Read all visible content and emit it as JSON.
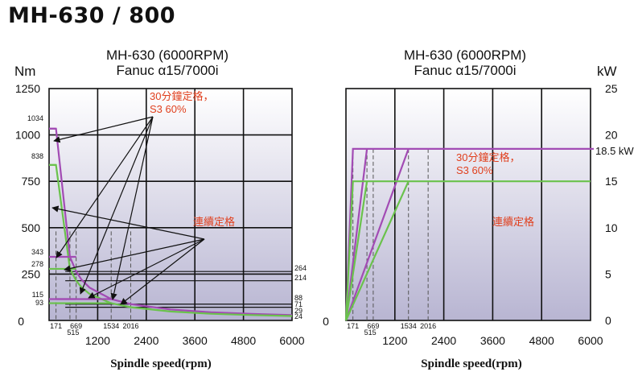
{
  "page_title": "MH-630 / 800",
  "colors": {
    "purple": "#a24bb4",
    "green": "#6ac24c",
    "red_text": "#e0401e",
    "grid": "#111111",
    "bg_top": "#ffffff",
    "bg_bottom": "#b8b5d2"
  },
  "chart_data": [
    {
      "type": "line",
      "title": [
        "MH-630 (6000RPM)",
        "Fanuc α15/7000i"
      ],
      "ylabel": "Nm",
      "xlabel": "Spindle speed(rpm)",
      "xlim": [
        0,
        6000
      ],
      "ylim": [
        0,
        1250
      ],
      "x_ticks": [
        "1200",
        "2400",
        "3600",
        "4800",
        "6000"
      ],
      "y_ticks": [
        "0",
        "250",
        "500",
        "750",
        "1000",
        "1250"
      ],
      "small_x_labels": [
        "171",
        "515",
        "669",
        "1534",
        "2016"
      ],
      "left_value_labels": [
        "1034",
        "838",
        "343",
        "278",
        "115",
        "93"
      ],
      "right_value_labels": [
        "264",
        "214",
        "88",
        "71",
        "29",
        "24"
      ],
      "annotations": [
        {
          "text": "30分鐘定格，",
          "text2": "S3 60%"
        },
        {
          "text": "連續定格"
        }
      ],
      "series": [
        {
          "name": "30分鐘定格，S3 60%",
          "color": "purple",
          "x": [
            0,
            171,
            515,
            669,
            800,
            1000,
            1534,
            2016,
            3000,
            4000,
            5000,
            6000
          ],
          "y": [
            1034,
            1034,
            343,
            264,
            220,
            177,
            115,
            88,
            59,
            44,
            35,
            29
          ]
        },
        {
          "name": "連續定格",
          "color": "green",
          "x": [
            0,
            171,
            515,
            669,
            800,
            1000,
            1534,
            2016,
            3000,
            4000,
            5000,
            6000
          ],
          "y": [
            838,
            838,
            278,
            214,
            179,
            143,
            93,
            71,
            48,
            36,
            29,
            24
          ]
        }
      ]
    },
    {
      "type": "line",
      "title": [
        "MH-630 (6000RPM)",
        "Fanuc α15/7000i"
      ],
      "ylabel": "kW",
      "xlabel": "Spindle speed(rpm)",
      "xlim": [
        0,
        6000
      ],
      "ylim": [
        0,
        25
      ],
      "x_ticks": [
        "0",
        "1200",
        "2400",
        "3600",
        "4800",
        "6000"
      ],
      "y_ticks": [
        "0",
        "5",
        "10",
        "15",
        "20",
        "25"
      ],
      "small_x_labels": [
        "171",
        "515",
        "669",
        "1534",
        "2016"
      ],
      "value_label": "18.5 kW",
      "annotations": [
        {
          "text": "30分鐘定格，",
          "text2": "S3 60%"
        },
        {
          "text": "連續定格"
        }
      ],
      "series": [
        {
          "name": "30分鐘定格，S3 60%",
          "color": "purple",
          "segments": [
            [
              [
                0,
                0
              ],
              [
                171,
                18.5
              ],
              [
                6000,
                18.5
              ]
            ],
            [
              [
                0,
                0
              ],
              [
                515,
                18.5
              ]
            ],
            [
              [
                0,
                0
              ],
              [
                1534,
                18.5
              ]
            ]
          ]
        },
        {
          "name": "連續定格",
          "color": "green",
          "segments": [
            [
              [
                0,
                0
              ],
              [
                171,
                15
              ],
              [
                6000,
                15
              ]
            ],
            [
              [
                0,
                0
              ],
              [
                515,
                15
              ]
            ],
            [
              [
                0,
                0
              ],
              [
                1534,
                15
              ]
            ]
          ]
        }
      ]
    }
  ]
}
